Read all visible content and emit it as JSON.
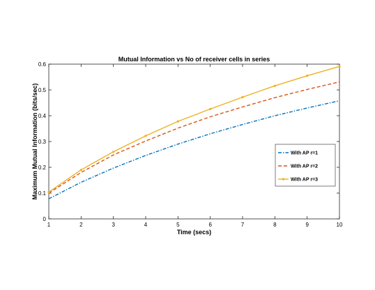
{
  "chart_data": {
    "type": "line",
    "title": "Mutual Information vs No of receiver cells in series",
    "xlabel": "Time (secs)",
    "ylabel": "Maximum Mutual Information (bits/sec)",
    "xlim": [
      1,
      10
    ],
    "ylim": [
      0,
      0.6
    ],
    "x_ticks": [
      "1",
      "2",
      "3",
      "4",
      "5",
      "6",
      "7",
      "8",
      "9",
      "10"
    ],
    "y_ticks": [
      "0",
      "0.1",
      "0.2",
      "0.3",
      "0.4",
      "0.5",
      "0.6"
    ],
    "grid": false,
    "legend_position": "right",
    "x": [
      1,
      2,
      3,
      4,
      5,
      6,
      7,
      8,
      9,
      10
    ],
    "series": [
      {
        "name": "With AP r=1",
        "color": "#0072BD",
        "style": "dash-dot",
        "marker": "none",
        "values": [
          0.078,
          0.142,
          0.197,
          0.246,
          0.29,
          0.33,
          0.366,
          0.4,
          0.43,
          0.458
        ]
      },
      {
        "name": "With AP r=2",
        "color": "#D95319",
        "style": "dashed",
        "marker": "none",
        "values": [
          0.1,
          0.18,
          0.248,
          0.302,
          0.352,
          0.396,
          0.434,
          0.47,
          0.502,
          0.531
        ]
      },
      {
        "name": "With AP r=3",
        "color": "#EDB120",
        "style": "solid",
        "marker": "point",
        "values": [
          0.104,
          0.19,
          0.26,
          0.322,
          0.378,
          0.426,
          0.472,
          0.516,
          0.555,
          0.591
        ]
      }
    ]
  }
}
